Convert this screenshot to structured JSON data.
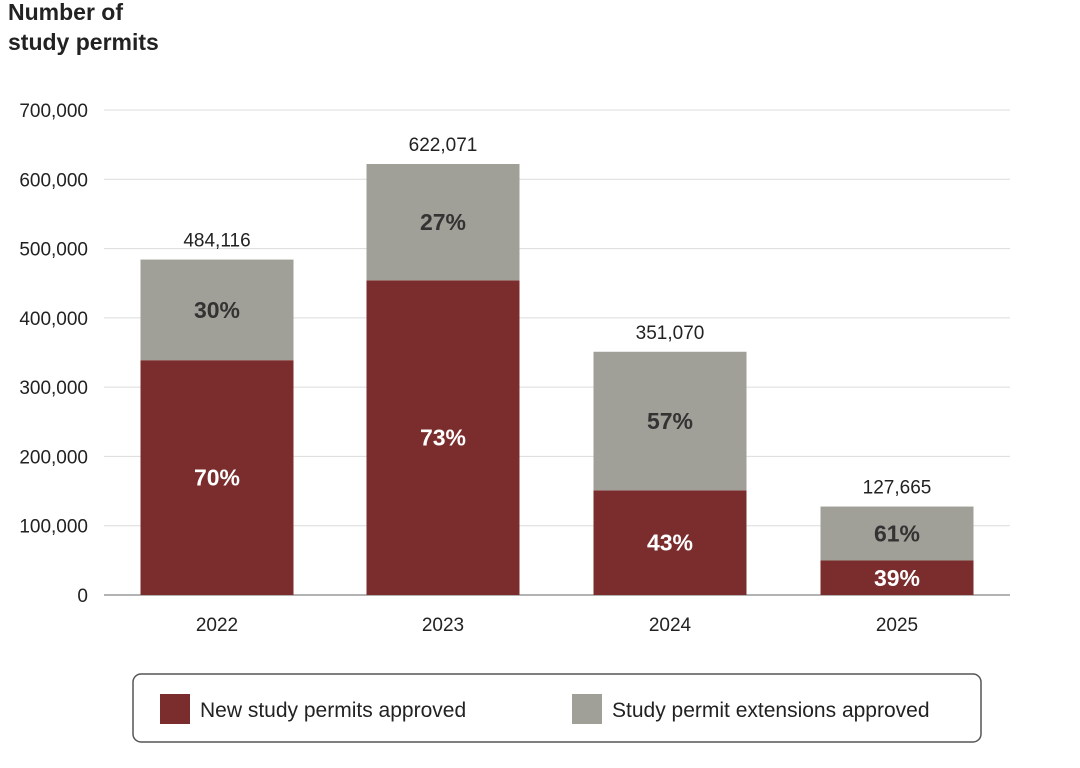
{
  "chart_data": {
    "type": "bar",
    "stacked": true,
    "ylabel_line1": "Number of",
    "ylabel_line2": "study permits",
    "ylim": [
      0,
      700000
    ],
    "y_ticks": [
      0,
      100000,
      200000,
      300000,
      400000,
      500000,
      600000,
      700000
    ],
    "y_tick_labels": [
      "0",
      "100,000",
      "200,000",
      "300,000",
      "400,000",
      "500,000",
      "600,000",
      "700,000"
    ],
    "categories": [
      "2022",
      "2023",
      "2024",
      "2025"
    ],
    "totals": [
      484116,
      622071,
      351070,
      127665
    ],
    "total_labels": [
      "484,116",
      "622,071",
      "351,070",
      "127,665"
    ],
    "series": [
      {
        "name": "New study permits approved",
        "color": "#7b2d2d",
        "text_color": "#ffffff",
        "values": [
          338881,
          454112,
          150960,
          49789
        ],
        "percent_labels": [
          "70%",
          "73%",
          "43%",
          "39%"
        ]
      },
      {
        "name": "Study permit extensions approved",
        "color": "#a09f98",
        "text_color": "#333333",
        "values": [
          145235,
          167959,
          200110,
          77876
        ],
        "percent_labels": [
          "30%",
          "27%",
          "57%",
          "61%"
        ]
      }
    ],
    "grid": true,
    "legend_position": "bottom"
  }
}
